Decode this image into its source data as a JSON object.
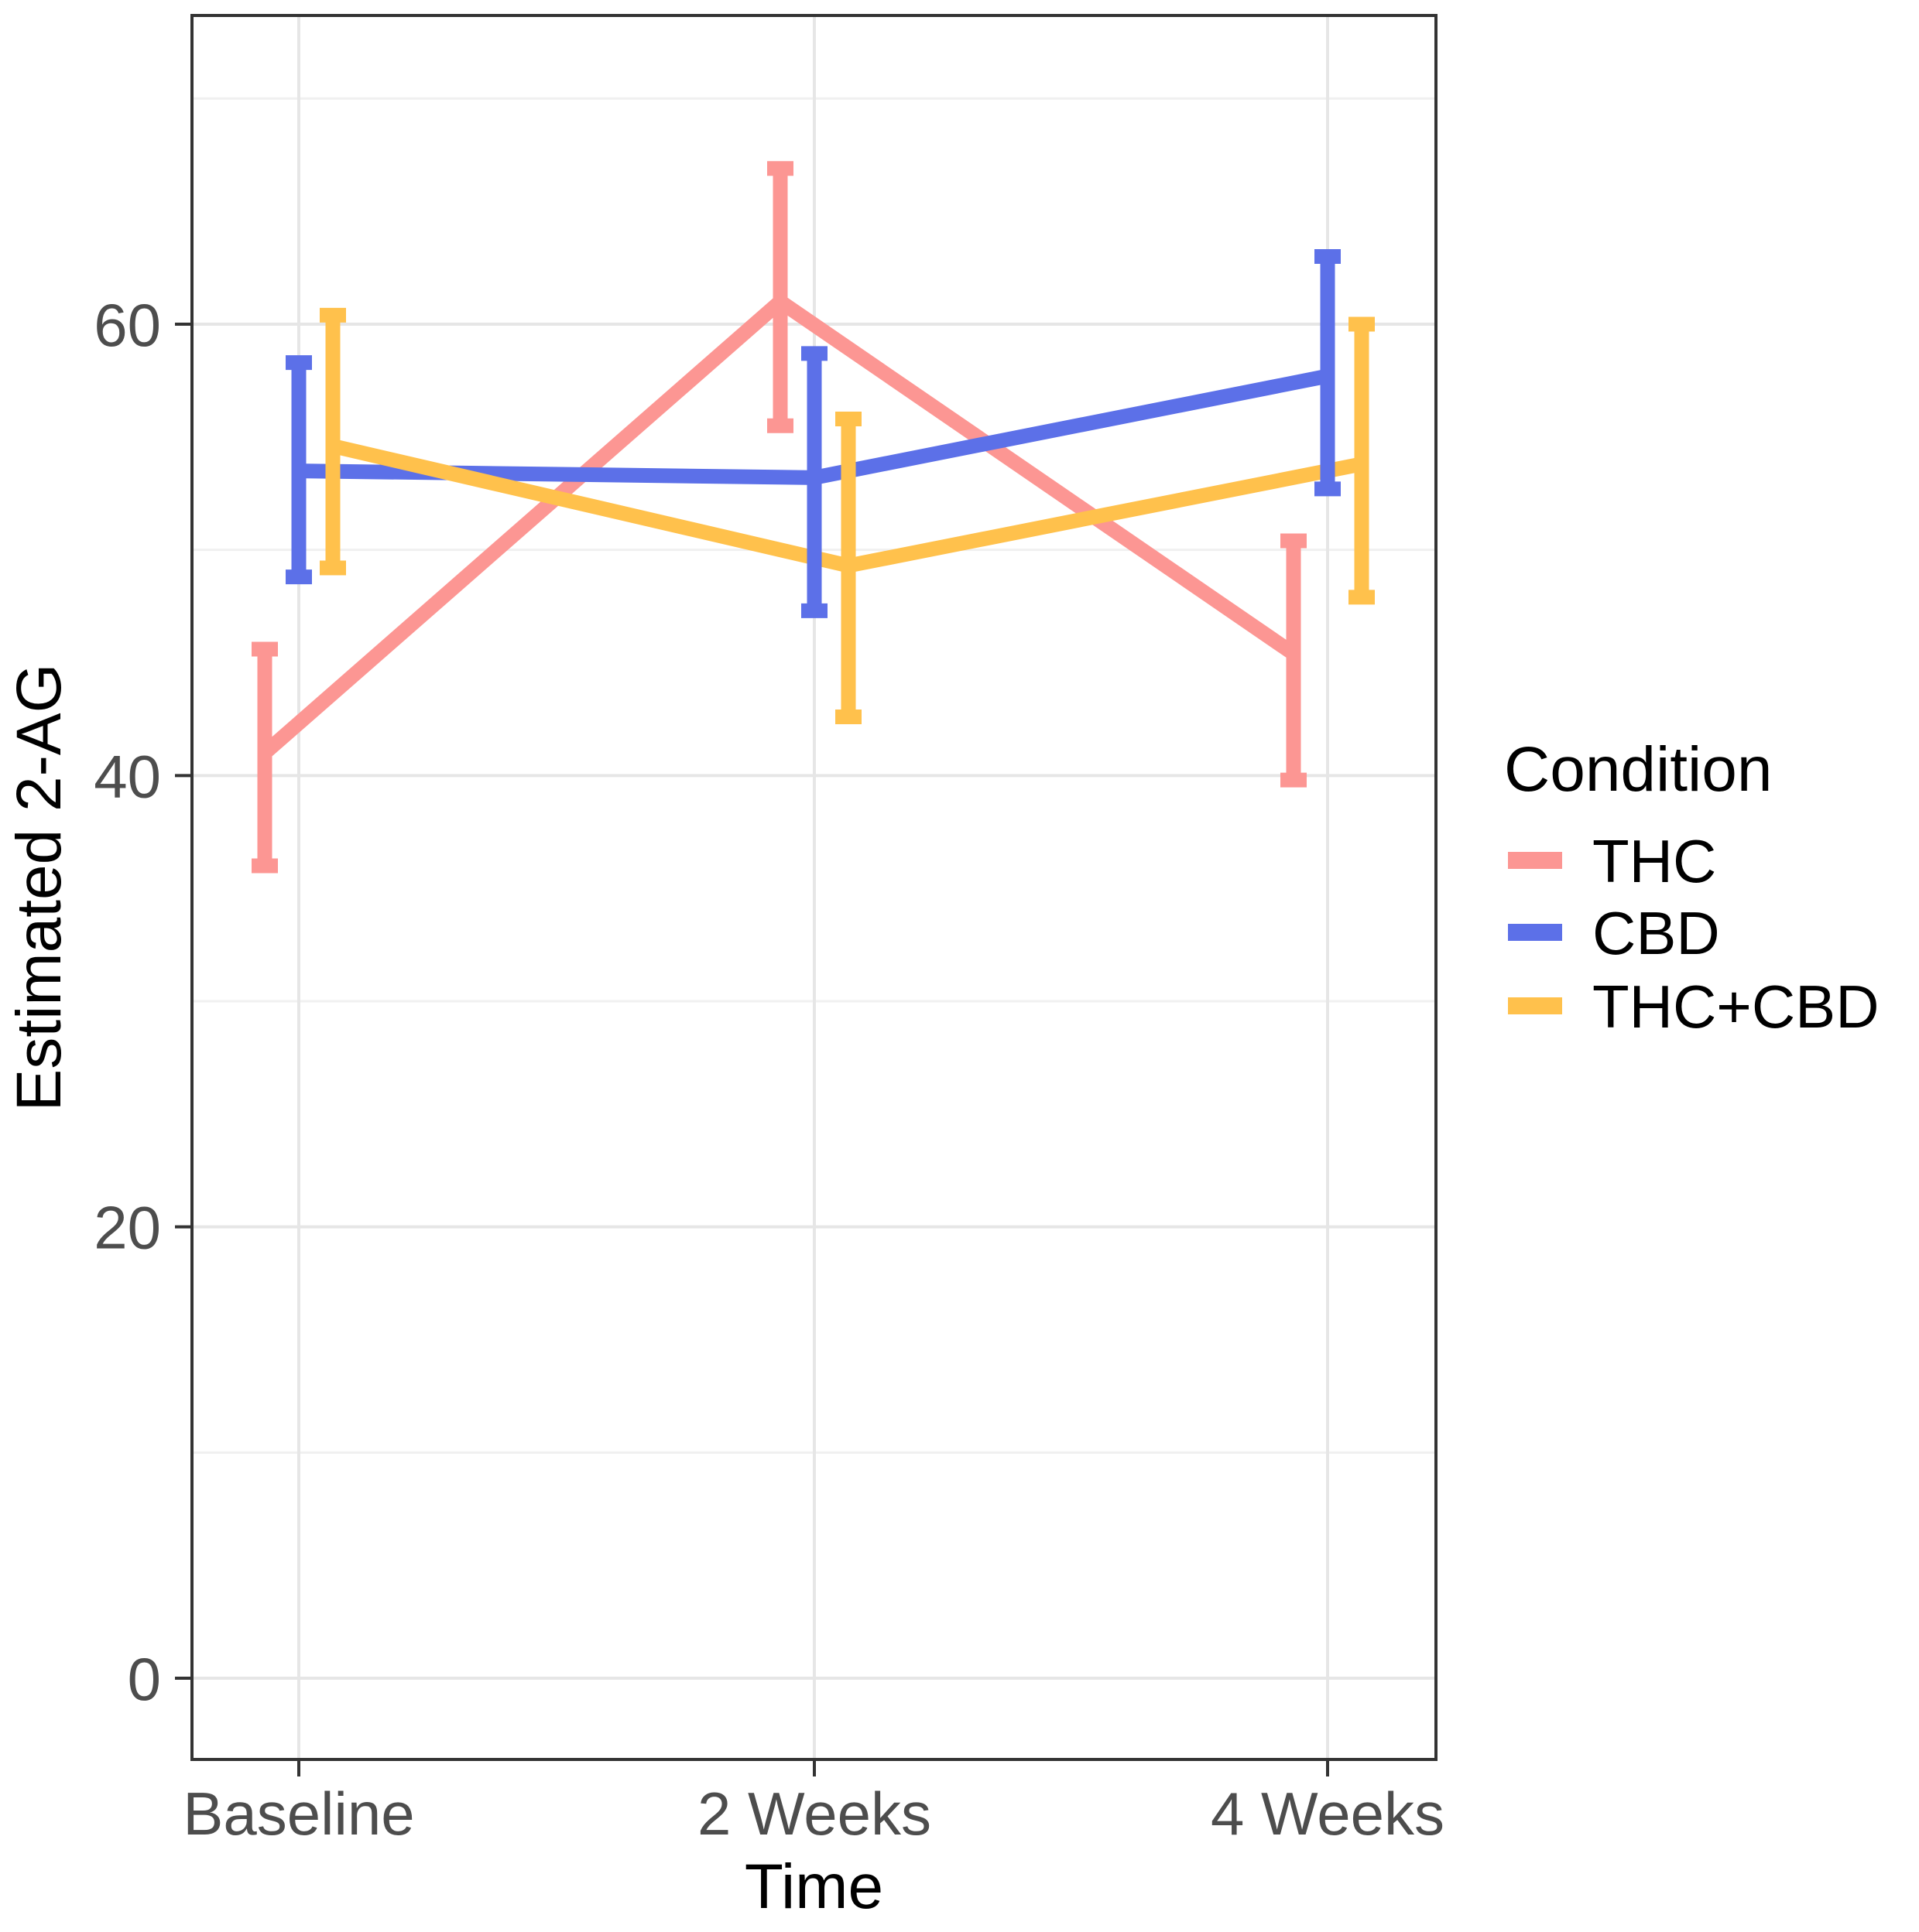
{
  "chart_data": {
    "type": "line",
    "title": "",
    "xlabel": "Time",
    "ylabel": "Estimated 2-AG",
    "categories": [
      "Baseline",
      "2 Weeks",
      "4 Weeks"
    ],
    "y_ticks": [
      0,
      20,
      40,
      60
    ],
    "y_tick_labels": [
      "0",
      "20",
      "40",
      "60"
    ],
    "ylim": [
      -3.6,
      73.7
    ],
    "grid": "major and minor horizontal, major vertical at categories",
    "legend": {
      "title": "Condition",
      "position": "right"
    },
    "error_bar_style": "vertical bar with caps",
    "colors": {
      "panel_border": "#333333",
      "major_grid": "#e6e6e6",
      "minor_grid": "#f0f0f0",
      "tick_text": "#4d4d4d",
      "title_text": "#000000"
    },
    "series": [
      {
        "name": "THC",
        "color": "#FC9693",
        "means": [
          41.0,
          61.0,
          45.4
        ],
        "ci_lower": [
          36.0,
          55.5,
          39.8
        ],
        "ci_upper": [
          45.6,
          66.9,
          50.4
        ]
      },
      {
        "name": "CBD",
        "color": "#5C70E8",
        "means": [
          53.5,
          53.2,
          57.7
        ],
        "ci_lower": [
          48.8,
          47.3,
          52.7
        ],
        "ci_upper": [
          58.3,
          58.7,
          63.0
        ]
      },
      {
        "name": "THC+CBD",
        "color": "#FFC14C",
        "means": [
          54.6,
          49.3,
          53.8
        ],
        "ci_lower": [
          49.2,
          42.6,
          47.9
        ],
        "ci_upper": [
          60.4,
          55.8,
          60.0
        ]
      }
    ]
  }
}
